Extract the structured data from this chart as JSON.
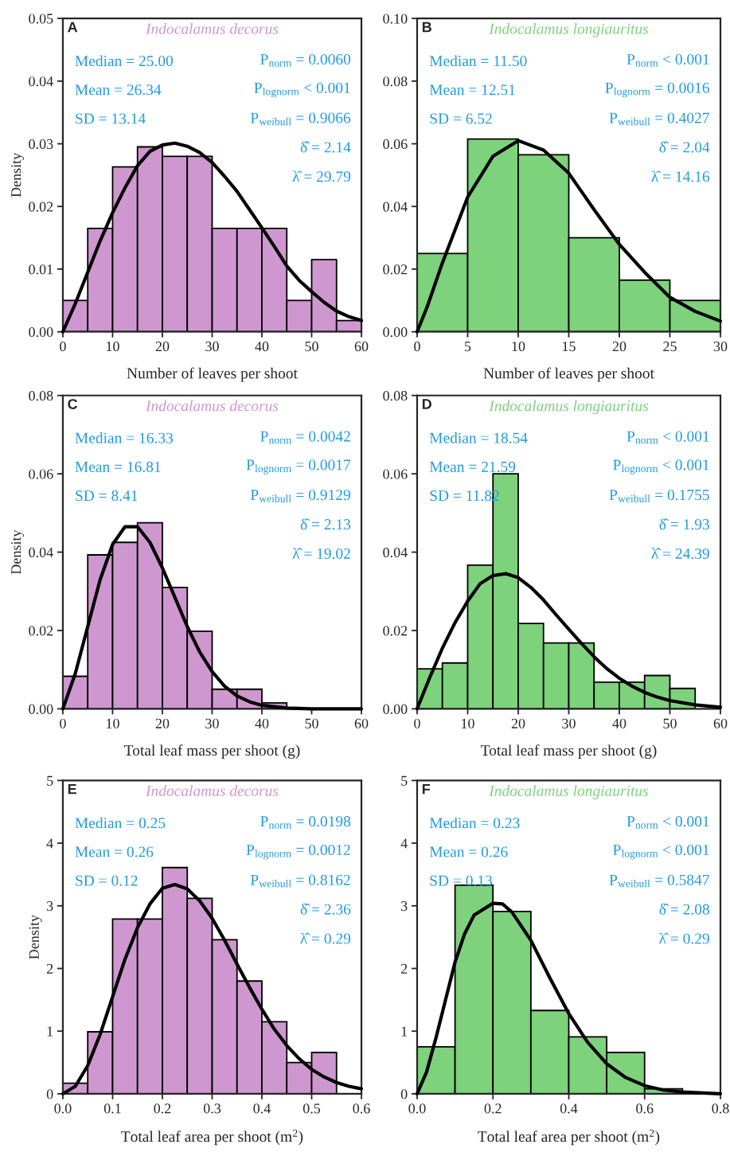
{
  "chart_data": [
    {
      "type": "histogram",
      "title": "Indocalamus decorus",
      "ylabel": "Density",
      "xlabel": "Number of leaves per shoot",
      "color": "#cf97cf",
      "annotations": [
        "A",
        "Median = 25.00",
        "Mean = 26.34",
        "SD = 13.14",
        "P$_{norm}$ = 0.0060",
        "P$_{lognorm}$ < 0.001",
        "P$_{weibull}$ = 0.9066",
        "δ̂ = 2.14",
        "λ̂ = 29.79"
      ],
      "bins": [
        0,
        5,
        10,
        15,
        20,
        25,
        30,
        35,
        40,
        45,
        50,
        55,
        60
      ],
      "values": [
        0.005,
        0.0165,
        0.0263,
        0.0295,
        0.028,
        0.028,
        0.0165,
        0.0165,
        0.0165,
        0.005,
        0.0115,
        0.0018
      ],
      "series": [
        {
          "type": "line",
          "color": "#000000",
          "x": [
            0,
            2.5,
            5,
            7.5,
            10,
            12.5,
            15,
            17.5,
            20,
            22.5,
            25,
            27.5,
            30,
            32.5,
            35,
            37.5,
            40,
            42.5,
            45,
            47.5,
            50,
            52.5,
            55,
            57.5,
            60
          ],
          "values": [
            0,
            0.0045,
            0.0095,
            0.0145,
            0.019,
            0.023,
            0.0265,
            0.0288,
            0.0298,
            0.0301,
            0.0296,
            0.0286,
            0.027,
            0.0248,
            0.0224,
            0.0195,
            0.0166,
            0.0136,
            0.0105,
            0.0082,
            0.0064,
            0.0047,
            0.0033,
            0.0024,
            0.0018
          ]
        }
      ],
      "xlim": [
        0,
        60
      ],
      "xticks": [
        0,
        10,
        20,
        30,
        40,
        50,
        60
      ],
      "ylim": [
        0,
        0.05
      ],
      "yticks": [
        {
          "value": 0,
          "label": "0.00"
        },
        0.01,
        0.02,
        0.03,
        0.04,
        0.05
      ],
      "grid": false,
      "legend": false
    },
    {
      "type": "histogram",
      "title": "Indocalamus longiauritus",
      "xlabel": "Number of leaves per shoot",
      "color": "#7dd27b",
      "annotations": [
        "B",
        "Median = 11.50",
        "Mean = 12.51",
        "SD = 6.52",
        "P$_{norm}$ < 0.001",
        "P$_{lognorm}$ = 0.0016",
        "P$_{weibull}$ = 0.4027",
        "δ̂ = 2.04",
        "λ̂ = 14.16"
      ],
      "bins": [
        0,
        5,
        10,
        15,
        20,
        25,
        30
      ],
      "values": [
        0.025,
        0.0615,
        0.0565,
        0.03,
        0.0165,
        0.01
      ],
      "series": [
        {
          "type": "line",
          "color": "#000000",
          "x": [
            0,
            1,
            2.5,
            5,
            7.5,
            10,
            12.5,
            15,
            17.5,
            20,
            22.5,
            25,
            27.5,
            30
          ],
          "values": [
            0,
            0.008,
            0.022,
            0.043,
            0.056,
            0.061,
            0.058,
            0.0506,
            0.039,
            0.0279,
            0.019,
            0.011,
            0.0065,
            0.0034
          ]
        }
      ],
      "xlim": [
        0,
        30
      ],
      "xticks": [
        0,
        5,
        10,
        15,
        20,
        25,
        30
      ],
      "ylim": [
        0,
        0.1
      ],
      "yticks": [
        {
          "value": 0,
          "label": "0.00"
        },
        {
          "value": 0.02,
          "label": "0.02"
        },
        {
          "value": 0.04,
          "label": "0.04"
        },
        {
          "value": 0.06,
          "label": "0.06"
        },
        {
          "value": 0.08,
          "label": "0.08"
        },
        {
          "value": 0.1,
          "label": "0.10"
        }
      ],
      "grid": false,
      "legend": false
    },
    {
      "type": "histogram",
      "title": "Indocalamus decorus",
      "ylabel": "Density",
      "xlabel": "Total leaf mass per shoot (g)",
      "color": "#cf97cf",
      "annotations": [
        "C",
        "Median = 16.33",
        "Mean = 16.81",
        "SD = 8.41",
        "P$_{norm}$ = 0.0042",
        "P$_{lognorm}$ = 0.0017",
        "P$_{weibull}$ = 0.9129",
        "δ̂ = 2.13",
        "λ̂ = 19.02"
      ],
      "bins": [
        0,
        5,
        10,
        15,
        20,
        25,
        30,
        35,
        40,
        45
      ],
      "values": [
        0.0083,
        0.0393,
        0.0425,
        0.0475,
        0.031,
        0.0198,
        0.005,
        0.005,
        0.0015
      ],
      "series": [
        {
          "type": "line",
          "color": "#000000",
          "x": [
            0,
            2.5,
            5,
            7.5,
            10,
            12.5,
            15,
            17.5,
            20,
            22.5,
            25,
            27.5,
            30,
            32.5,
            35,
            37.5,
            40,
            45,
            50,
            60
          ],
          "values": [
            0,
            0.009,
            0.021,
            0.033,
            0.042,
            0.0465,
            0.0465,
            0.0425,
            0.036,
            0.0285,
            0.021,
            0.0145,
            0.0095,
            0.0058,
            0.0033,
            0.0018,
            0.0009,
            0.0002,
            0,
            0
          ]
        }
      ],
      "xlim": [
        0,
        60
      ],
      "xticks": [
        0,
        10,
        20,
        30,
        40,
        50,
        60
      ],
      "ylim": [
        0,
        0.08
      ],
      "yticks": [
        {
          "value": 0,
          "label": "0.00"
        },
        0.02,
        0.04,
        0.06,
        0.08
      ],
      "grid": false,
      "legend": false
    },
    {
      "type": "histogram",
      "title": "Indocalamus longiauritus",
      "xlabel": "Total leaf mass per shoot (g)",
      "color": "#7dd27b",
      "annotations": [
        "D",
        "Median = 18.54",
        "Mean = 21.59",
        "SD = 11.82",
        "P$_{norm}$ < 0.001",
        "P$_{lognorm}$ < 0.001",
        "P$_{weibull}$ = 0.1755",
        "δ̂ = 1.93",
        "λ̂ = 24.39"
      ],
      "bins": [
        0,
        5,
        10,
        15,
        20,
        25,
        30,
        35,
        40,
        45,
        50,
        55
      ],
      "values": [
        0.0102,
        0.0117,
        0.0367,
        0.06,
        0.0218,
        0.0168,
        0.0168,
        0.0068,
        0.0068,
        0.0085,
        0.0052
      ],
      "series": [
        {
          "type": "line",
          "color": "#000000",
          "x": [
            0,
            2.5,
            5,
            7.5,
            10,
            12.5,
            15,
            17.5,
            20,
            22.5,
            25,
            27.5,
            30,
            32.5,
            35,
            37.5,
            40,
            42.5,
            45,
            47.5,
            50,
            55,
            60
          ],
          "values": [
            0,
            0.008,
            0.0155,
            0.022,
            0.0275,
            0.032,
            0.034,
            0.0345,
            0.0335,
            0.031,
            0.0278,
            0.024,
            0.0203,
            0.0167,
            0.0133,
            0.0103,
            0.0078,
            0.0058,
            0.0042,
            0.003,
            0.0021,
            0.001,
            0.0004
          ]
        }
      ],
      "xlim": [
        0,
        60
      ],
      "xticks": [
        0,
        10,
        20,
        30,
        40,
        50,
        60
      ],
      "ylim": [
        0,
        0.08
      ],
      "yticks": [
        {
          "value": 0,
          "label": "0.00"
        },
        0.02,
        0.04,
        0.06,
        0.08
      ],
      "grid": false,
      "legend": false
    },
    {
      "type": "histogram",
      "title": "Indocalamus decorus",
      "ylabel": "Density",
      "xlabel": "Total leaf area per shoot (m$^{2}$)",
      "color": "#cf97cf",
      "annotations": [
        "E",
        "Median = 0.25",
        "Mean = 0.26",
        "SD = 0.12",
        "P$_{norm}$ = 0.0198",
        "P$_{lognorm}$ = 0.0012",
        "P$_{weibull}$ = 0.8162",
        "δ̂ = 2.36",
        "λ̂ = 0.29"
      ],
      "bins": [
        0,
        0.05,
        0.1,
        0.15,
        0.2,
        0.25,
        0.3,
        0.35,
        0.4,
        0.45,
        0.5,
        0.55
      ],
      "values": [
        0.17,
        0.99,
        2.79,
        2.79,
        3.61,
        3.12,
        2.46,
        1.8,
        1.15,
        0.5,
        0.66
      ],
      "series": [
        {
          "type": "line",
          "color": "#000000",
          "x": [
            0,
            0.025,
            0.05,
            0.075,
            0.1,
            0.125,
            0.15,
            0.175,
            0.2,
            0.225,
            0.25,
            0.275,
            0.3,
            0.325,
            0.35,
            0.375,
            0.4,
            0.425,
            0.45,
            0.475,
            0.5,
            0.525,
            0.55,
            0.575,
            0.6
          ],
          "values": [
            0,
            0.12,
            0.45,
            0.95,
            1.55,
            2.15,
            2.65,
            3.03,
            3.28,
            3.34,
            3.27,
            3.08,
            2.8,
            2.45,
            2.07,
            1.7,
            1.35,
            1.03,
            0.77,
            0.56,
            0.39,
            0.27,
            0.18,
            0.12,
            0.08
          ]
        }
      ],
      "xlim": [
        0,
        0.6
      ],
      "xticks": [
        {
          "value": 0,
          "label": "0.0"
        },
        0.1,
        0.2,
        0.3,
        0.4,
        0.5,
        0.6
      ],
      "ylim": [
        0,
        5
      ],
      "yticks": [
        0,
        1,
        2,
        3,
        4,
        5
      ],
      "grid": false,
      "legend": false
    },
    {
      "type": "histogram",
      "title": "Indocalamus longiauritus",
      "xlabel": "Total leaf area per shoot (m$^{2}$)",
      "color": "#7dd27b",
      "annotations": [
        "F",
        "Median = 0.23",
        "Mean = 0.26",
        "SD = 0.13",
        "P$_{norm}$ < 0.001",
        "P$_{lognorm}$ < 0.001",
        "P$_{weibull}$ = 0.5847",
        "δ̂ = 2.08",
        "λ̂ = 0.29"
      ],
      "bins": [
        0,
        0.1,
        0.2,
        0.3,
        0.4,
        0.5,
        0.6,
        0.7
      ],
      "values": [
        0.75,
        3.33,
        2.91,
        1.33,
        0.91,
        0.66,
        0.08
      ],
      "series": [
        {
          "type": "line",
          "color": "#000000",
          "x": [
            0,
            0.025,
            0.05,
            0.075,
            0.1,
            0.125,
            0.15,
            0.2,
            0.225,
            0.25,
            0.3,
            0.35,
            0.4,
            0.45,
            0.5,
            0.55,
            0.6,
            0.65,
            0.7,
            0.8
          ],
          "values": [
            0,
            0.35,
            0.9,
            1.5,
            2.1,
            2.55,
            2.85,
            3.04,
            3.03,
            2.9,
            2.45,
            1.85,
            1.28,
            0.82,
            0.48,
            0.26,
            0.13,
            0.06,
            0.03,
            0.0
          ]
        }
      ],
      "xlim": [
        0,
        0.8
      ],
      "xticks": [
        {
          "value": 0,
          "label": "0.0"
        },
        0.2,
        0.4,
        0.6,
        0.8
      ],
      "ylim": [
        0,
        5
      ],
      "yticks": [
        0,
        1,
        2,
        3,
        4,
        5
      ],
      "grid": false,
      "legend": false
    }
  ]
}
